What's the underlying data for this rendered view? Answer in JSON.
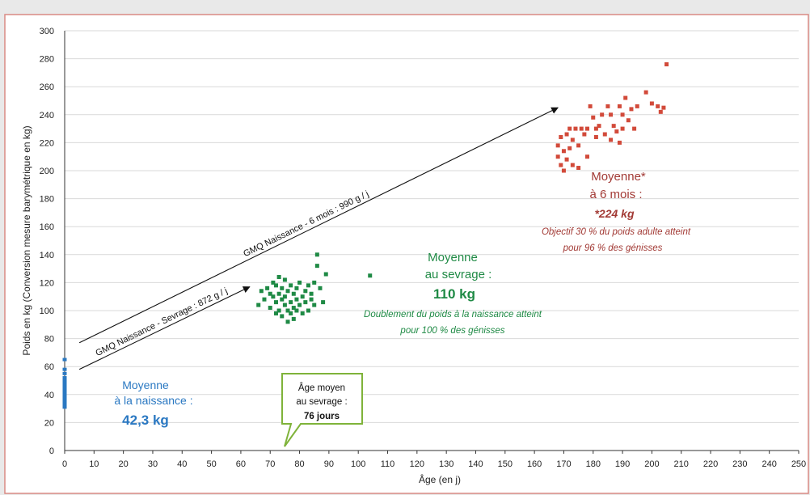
{
  "chart_data": {
    "type": "scatter",
    "xlabel": "Âge (en j)",
    "ylabel": "Poids en kg (Conversion mesure barymétrique en kg)",
    "xlim": [
      0,
      250
    ],
    "ylim": [
      0,
      300
    ],
    "x_ticks": [
      0,
      10,
      20,
      30,
      40,
      50,
      60,
      70,
      80,
      90,
      100,
      110,
      120,
      130,
      140,
      150,
      160,
      170,
      180,
      190,
      200,
      210,
      220,
      230,
      240,
      250
    ],
    "y_ticks": [
      0,
      20,
      40,
      60,
      80,
      100,
      120,
      140,
      160,
      180,
      200,
      220,
      240,
      260,
      280,
      300
    ],
    "grid": "horizontal",
    "series": [
      {
        "color": "#2a78c2",
        "points": [
          [
            0,
            31
          ],
          [
            0,
            33
          ],
          [
            0,
            35
          ],
          [
            0,
            37
          ],
          [
            0,
            39
          ],
          [
            0,
            41
          ],
          [
            0,
            42
          ],
          [
            0,
            43
          ],
          [
            0,
            44
          ],
          [
            0,
            45
          ],
          [
            0,
            46
          ],
          [
            0,
            48
          ],
          [
            0,
            50
          ],
          [
            0,
            52
          ],
          [
            0,
            55
          ],
          [
            0,
            58
          ],
          [
            0,
            65
          ]
        ]
      },
      {
        "color": "#1f8a45",
        "points": [
          [
            66,
            104
          ],
          [
            67,
            114
          ],
          [
            68,
            108
          ],
          [
            69,
            116
          ],
          [
            70,
            112
          ],
          [
            70,
            102
          ],
          [
            71,
            120
          ],
          [
            71,
            110
          ],
          [
            72,
            118
          ],
          [
            72,
            106
          ],
          [
            72,
            98
          ],
          [
            73,
            124
          ],
          [
            73,
            112
          ],
          [
            73,
            100
          ],
          [
            74,
            108
          ],
          [
            74,
            96
          ],
          [
            74,
            116
          ],
          [
            75,
            122
          ],
          [
            75,
            110
          ],
          [
            75,
            104
          ],
          [
            76,
            100
          ],
          [
            76,
            114
          ],
          [
            76,
            92
          ],
          [
            77,
            106
          ],
          [
            77,
            118
          ],
          [
            77,
            98
          ],
          [
            78,
            112
          ],
          [
            78,
            102
          ],
          [
            78,
            94
          ],
          [
            79,
            108
          ],
          [
            79,
            116
          ],
          [
            79,
            100
          ],
          [
            80,
            104
          ],
          [
            80,
            120
          ],
          [
            81,
            110
          ],
          [
            81,
            98
          ],
          [
            82,
            106
          ],
          [
            82,
            114
          ],
          [
            83,
            118
          ],
          [
            83,
            100
          ],
          [
            84,
            108
          ],
          [
            84,
            112
          ],
          [
            85,
            120
          ],
          [
            85,
            104
          ],
          [
            86,
            140
          ],
          [
            86,
            132
          ],
          [
            87,
            116
          ],
          [
            88,
            106
          ],
          [
            89,
            126
          ],
          [
            104,
            125
          ]
        ]
      },
      {
        "color": "#d24a3a",
        "points": [
          [
            168,
            210
          ],
          [
            168,
            218
          ],
          [
            169,
            204
          ],
          [
            169,
            224
          ],
          [
            170,
            214
          ],
          [
            170,
            200
          ],
          [
            171,
            226
          ],
          [
            171,
            208
          ],
          [
            172,
            230
          ],
          [
            172,
            216
          ],
          [
            173,
            204
          ],
          [
            173,
            222
          ],
          [
            174,
            230
          ],
          [
            175,
            202
          ],
          [
            175,
            218
          ],
          [
            176,
            230
          ],
          [
            177,
            226
          ],
          [
            178,
            230
          ],
          [
            178,
            210
          ],
          [
            179,
            246
          ],
          [
            180,
            238
          ],
          [
            181,
            230
          ],
          [
            181,
            224
          ],
          [
            182,
            232
          ],
          [
            183,
            240
          ],
          [
            184,
            226
          ],
          [
            185,
            246
          ],
          [
            186,
            240
          ],
          [
            186,
            222
          ],
          [
            187,
            232
          ],
          [
            188,
            228
          ],
          [
            189,
            220
          ],
          [
            189,
            246
          ],
          [
            190,
            240
          ],
          [
            190,
            230
          ],
          [
            191,
            252
          ],
          [
            192,
            236
          ],
          [
            193,
            244
          ],
          [
            194,
            230
          ],
          [
            195,
            246
          ],
          [
            198,
            256
          ],
          [
            200,
            248
          ],
          [
            202,
            246
          ],
          [
            203,
            242
          ],
          [
            205,
            276
          ],
          [
            204,
            245
          ]
        ]
      }
    ],
    "arrows": [
      {
        "label": "GMQ Naissance - Sevrage : 872 g / j",
        "from": [
          5,
          58
        ],
        "to": [
          63,
          117
        ]
      },
      {
        "label": "GMQ Naissance - 6 mois : 990 g / j",
        "from": [
          5,
          77
        ],
        "to": [
          168,
          245
        ]
      }
    ],
    "annotations": {
      "naissance": {
        "line1": "Moyenne",
        "line2": "à la naissance :",
        "value": "42,3 kg",
        "color": "#2a78c2"
      },
      "sevrage": {
        "line1": "Moyenne",
        "line2": "au sevrage :",
        "value": "110 kg",
        "note1": "Doublement du poids à la naissance atteint",
        "note2": "pour 100 % des génisses",
        "color": "#1f8a45"
      },
      "six_mois": {
        "line1": "Moyenne*",
        "line2": "à 6 mois :",
        "value": "*224 kg",
        "note1": "Objectif 30 % du poids adulte atteint",
        "note2": "pour 96 % des génisses",
        "color": "#a23a35"
      },
      "age_callout": {
        "line1": "Âge moyen",
        "line2": "au sevrage :",
        "value": "76 jours"
      }
    }
  },
  "colors": {
    "frame_border": "#d98a84",
    "callout_border": "#7fb33a",
    "plot_bg": "#ffffff",
    "grid": "#d9d9d9",
    "axis": "#333333",
    "arrow": "#111111"
  }
}
